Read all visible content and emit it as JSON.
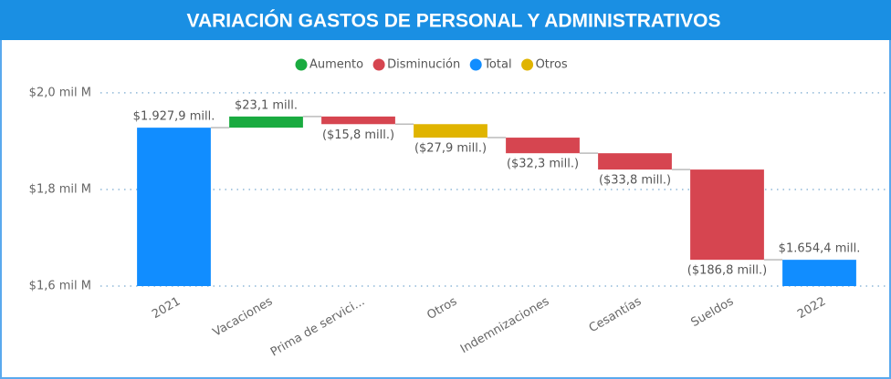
{
  "chart_data": {
    "type": "waterfall",
    "title": "VARIACIÓN GASTOS DE PERSONAL Y ADMINISTRATIVOS",
    "legend": [
      {
        "name": "Aumento",
        "color": "#1aab40"
      },
      {
        "name": "Disminución",
        "color": "#d64550"
      },
      {
        "name": "Total",
        "color": "#118dff"
      },
      {
        "name": "Otros",
        "color": "#e0b400"
      }
    ],
    "categories": [
      "2021",
      "Vacaciones",
      "Prima de servici...",
      "Otros",
      "Indemnizaciones",
      "Cesantías",
      "Sueldos",
      "2022"
    ],
    "kinds": [
      "Total",
      "Aumento",
      "Disminución",
      "Otros",
      "Disminución",
      "Disminución",
      "Disminución",
      "Total"
    ],
    "values": [
      1927.9,
      23.1,
      -15.8,
      -27.9,
      -32.3,
      -33.8,
      -186.8,
      1654.4
    ],
    "value_labels": [
      "$1.927,9 mill.",
      "$23,1 mill.",
      "($15,8 mill.)",
      "($27,9 mill.)",
      "($32,3 mill.)",
      "($33,8 mill.)",
      "($186,8 mill.)",
      "$1.654,4 mill."
    ],
    "ylim": [
      1600,
      2030
    ],
    "yticks": [
      {
        "value": 1600,
        "label": "$1,6 mil M"
      },
      {
        "value": 1800,
        "label": "$1,8 mil M"
      },
      {
        "value": 2000,
        "label": "$2,0 mil M"
      }
    ],
    "grid": true
  }
}
